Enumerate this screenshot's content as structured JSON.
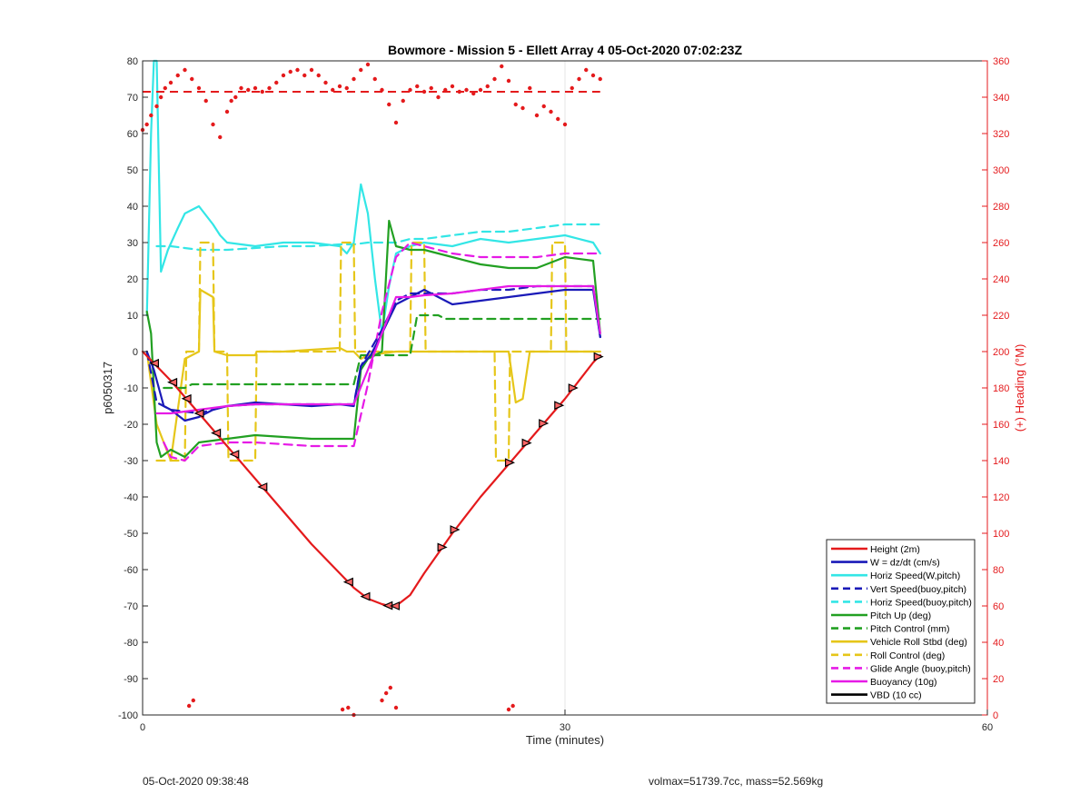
{
  "footer": {
    "timestamp": "05-Oct-2020 09:38:48",
    "info": "volmax=51739.7cc, mass=52.569kg"
  },
  "chart_data": {
    "type": "line",
    "title": "Bowmore - Mission 5 - Ellett Array 4 05-Oct-2020 07:02:23Z",
    "xlabel": "Time (minutes)",
    "ylabel": "p6050317",
    "y2label": "(+) Heading (°M)",
    "xlim": [
      0,
      60
    ],
    "ylim": [
      -100,
      80
    ],
    "y2lim": [
      0,
      360
    ],
    "xticks": [
      0,
      30,
      60
    ],
    "yticks": [
      -100,
      -90,
      -80,
      -70,
      -60,
      -50,
      -40,
      -30,
      -20,
      -10,
      0,
      10,
      20,
      30,
      40,
      50,
      60,
      70,
      80
    ],
    "y2ticks": [
      0,
      20,
      40,
      60,
      80,
      100,
      120,
      140,
      160,
      180,
      200,
      220,
      240,
      260,
      280,
      300,
      320,
      340,
      360
    ],
    "grid": "x-at-30",
    "legend_position": "bottom-right",
    "colors": {
      "red": "#e41a1c",
      "blue": "#1a1ab8",
      "cyan": "#33e6e6",
      "green": "#22a022",
      "yellow": "#e6c619",
      "magenta": "#e61ae6",
      "black": "#000000",
      "axis_left": "#262626",
      "axis_right": "#e41a1c"
    },
    "series": [
      {
        "name": "Height (2m)",
        "color": "red",
        "style": "solid",
        "x": [
          0,
          2,
          4,
          6,
          8,
          10,
          12,
          14,
          15,
          16,
          17,
          17.5,
          18,
          19,
          20,
          22,
          24,
          26,
          28,
          30,
          32,
          32.5
        ],
        "y": [
          0,
          -8,
          -17,
          -26,
          -35,
          -44,
          -53,
          -61,
          -65,
          -68,
          -69.5,
          -70,
          -70,
          -67,
          -61,
          -50,
          -40,
          -31,
          -22,
          -13,
          -3,
          -1
        ]
      },
      {
        "name": "W = dz/dt (cm/s)",
        "color": "blue",
        "style": "solid",
        "x": [
          0.3,
          0.8,
          1.5,
          2,
          3,
          4,
          5,
          6,
          8,
          10,
          12,
          14,
          15,
          15.5,
          16.2,
          17,
          18,
          19,
          20,
          21,
          22,
          24,
          26,
          28,
          30,
          32,
          32.5
        ],
        "y": [
          0,
          -5,
          -15,
          -16,
          -19,
          -18,
          -16,
          -15,
          -14,
          -14.5,
          -15,
          -14.5,
          -15,
          -4,
          -1,
          5,
          13,
          15,
          17,
          15,
          13,
          14,
          15,
          16,
          17,
          17,
          4
        ]
      },
      {
        "name": "Horiz Speed(W,pitch)",
        "color": "cyan",
        "style": "solid",
        "x": [
          0.3,
          0.6,
          0.8,
          1.0,
          1.3,
          1.8,
          2.5,
          3,
          4,
          5,
          5.5,
          6,
          8,
          10,
          12,
          14,
          14.5,
          15,
          15.5,
          16,
          16.5,
          17,
          17.5,
          18,
          19,
          20,
          22,
          24,
          26,
          28,
          30,
          32,
          32.5
        ],
        "y": [
          10,
          60,
          80,
          80,
          22,
          28,
          34,
          38,
          40,
          35,
          32,
          30,
          29,
          30,
          30,
          29,
          27,
          30,
          46,
          38,
          20,
          5,
          18,
          27,
          29,
          30,
          29,
          31,
          30,
          31,
          32,
          30,
          27
        ]
      },
      {
        "name": "Vert Speed(buoy,pitch)",
        "color": "blue",
        "style": "dashed",
        "x": [
          0.3,
          1,
          2,
          4,
          6,
          8,
          10,
          12,
          14,
          15,
          15.5,
          17,
          18,
          19,
          20,
          22,
          24,
          26,
          28,
          30,
          32,
          32.5
        ],
        "y": [
          0,
          -14,
          -16,
          -17,
          -15,
          -14.5,
          -14.5,
          -14.5,
          -14.5,
          -14.5,
          -4,
          6,
          14,
          16,
          16,
          16,
          17,
          17,
          18,
          18,
          18,
          4
        ]
      },
      {
        "name": "Horiz Speed(buoy,pitch)",
        "color": "cyan",
        "style": "dashed",
        "x": [
          1,
          2,
          4,
          6,
          8,
          10,
          12,
          14,
          15,
          16,
          17,
          18,
          19,
          20,
          22,
          24,
          26,
          28,
          30,
          32,
          32.5
        ],
        "y": [
          29,
          29,
          28,
          28,
          28.5,
          29,
          29,
          29.5,
          29.5,
          30,
          30,
          30,
          31,
          31,
          32,
          33,
          33,
          34,
          35,
          35,
          35
        ]
      },
      {
        "name": "Pitch Up (deg)",
        "color": "green",
        "style": "solid",
        "x": [
          0.3,
          0.6,
          1.0,
          1.3,
          2,
          3,
          4,
          6,
          8,
          10,
          12,
          14,
          15,
          15.5,
          16,
          17,
          17.5,
          18,
          19,
          20,
          22,
          24,
          26,
          28,
          30,
          32,
          32.5
        ],
        "y": [
          11,
          5,
          -25,
          -29,
          -27,
          -29,
          -25,
          -24,
          -23,
          -23.5,
          -24,
          -24,
          -24,
          -5,
          -2,
          0,
          36,
          29,
          28,
          28,
          26,
          24,
          23,
          23,
          26,
          25,
          5
        ]
      },
      {
        "name": "Pitch Control (mm)",
        "color": "green",
        "style": "dashed",
        "x": [
          1.5,
          3,
          3.5,
          10,
          15,
          15.5,
          19,
          19.5,
          21,
          21.5,
          30,
          32,
          32.5
        ],
        "y": [
          -10,
          -10,
          -9,
          -9,
          -9,
          -1,
          -1,
          10,
          10,
          9,
          9,
          9,
          9
        ]
      },
      {
        "name": "Vehicle Roll Stbd (deg)",
        "color": "yellow",
        "style": "solid",
        "x": [
          0.3,
          1,
          2,
          3,
          4,
          4.1,
          5,
          5.1,
          6,
          8,
          8.1,
          10,
          14,
          14.5,
          15,
          15.5,
          16,
          18,
          19,
          22,
          25,
          26,
          26.5,
          27,
          27.5,
          30,
          30.5,
          32,
          32.5
        ],
        "y": [
          0,
          -20,
          -30,
          -2,
          0,
          17,
          15,
          0,
          -1,
          -1,
          0,
          0,
          1,
          0,
          0,
          -2,
          -1,
          0,
          0,
          0,
          0,
          0,
          -14,
          -13,
          0,
          0,
          0,
          0,
          0
        ]
      },
      {
        "name": "Roll Control (deg)",
        "color": "yellow",
        "style": "dashed",
        "x": [
          1,
          2,
          3,
          3.1,
          4,
          4.1,
          5,
          5.1,
          6,
          6.1,
          8,
          8.1,
          14,
          14.1,
          15,
          15.1,
          19,
          19.1,
          20,
          20.1,
          25,
          25.1,
          26,
          26.1,
          29,
          29.1,
          30,
          30.1,
          32
        ],
        "y": [
          -30,
          -30,
          -30,
          0,
          0,
          30,
          30,
          0,
          0,
          -30,
          -30,
          0,
          0,
          30,
          30,
          0,
          0,
          30,
          30,
          0,
          0,
          -30,
          -30,
          0,
          0,
          30,
          30,
          0,
          0
        ]
      },
      {
        "name": "Glide Angle (buoy,pitch)",
        "color": "magenta",
        "style": "dashed",
        "x": [
          1.5,
          2,
          3,
          4,
          6,
          8,
          10,
          12,
          14,
          15,
          16,
          17,
          18,
          19,
          20,
          22,
          24,
          26,
          28,
          30,
          32,
          32.5
        ],
        "y": [
          -25,
          -29,
          -30,
          -26,
          -25,
          -25,
          -25.5,
          -26,
          -26,
          -26,
          -9,
          11,
          26,
          30,
          29,
          27,
          26,
          26,
          26,
          27,
          27,
          27
        ]
      },
      {
        "name": "Buoyancy (10g)",
        "color": "magenta",
        "style": "solid",
        "x": [
          1,
          2,
          4,
          6,
          8,
          10,
          12,
          14,
          15,
          16,
          17,
          18,
          19,
          20,
          22,
          24,
          26,
          28,
          30,
          32,
          32.5
        ],
        "y": [
          -17,
          -17,
          -16,
          -15,
          -14.5,
          -14.5,
          -14.5,
          -14.5,
          -14.5,
          -5,
          5,
          15,
          15,
          15.5,
          16,
          17,
          18,
          18,
          18,
          18,
          5
        ]
      },
      {
        "name": "VBD (10 cc)",
        "color": "black",
        "style": "solid",
        "x": [
          0.3,
          0.7,
          1,
          2,
          5,
          10,
          14,
          15.2,
          18,
          19,
          20,
          22,
          24,
          26,
          28,
          30,
          32,
          32.5
        ],
        "y": [
          0,
          -14,
          -14,
          -14,
          -14,
          -14,
          -14.5,
          -14.5,
          15,
          15,
          15,
          17,
          18,
          18.5,
          19,
          19.5,
          20,
          5
        ]
      }
    ],
    "heading_reference": {
      "y2": 343,
      "color": "red",
      "style": "dashed",
      "x": [
        0,
        32.5
      ]
    },
    "heading": {
      "axis": "right",
      "color": "red",
      "style": "dots",
      "x": [
        0,
        0.3,
        0.6,
        1,
        1.3,
        1.6,
        2,
        2.5,
        3,
        3.5,
        4,
        4.5,
        5,
        5.5,
        6,
        6.3,
        6.6,
        7,
        7.5,
        8,
        8.5,
        9,
        9.5,
        10,
        10.5,
        11,
        11.5,
        12,
        12.5,
        13,
        13.5,
        14,
        14.5,
        15,
        15.5,
        16,
        16.5,
        17,
        17.5,
        18,
        18.5,
        19,
        19.5,
        20,
        20.5,
        21,
        21.5,
        22,
        22.5,
        23,
        23.5,
        24,
        24.5,
        25,
        25.5,
        26,
        26.5,
        27,
        27.5,
        28,
        28.5,
        29,
        29.5,
        30,
        30.5,
        31,
        31.5,
        32,
        32.5,
        3.3,
        3.6,
        14.2,
        14.6,
        15.0,
        17.0,
        17.3,
        17.6,
        18.0,
        26.0,
        26.3
      ],
      "y2": [
        322,
        325,
        330,
        335,
        340,
        345,
        348,
        352,
        355,
        350,
        345,
        338,
        325,
        318,
        332,
        338,
        340,
        345,
        344,
        345,
        343,
        345,
        348,
        352,
        354,
        355,
        352,
        355,
        352,
        348,
        344,
        346,
        345,
        350,
        355,
        358,
        350,
        344,
        336,
        326,
        338,
        344,
        346,
        343,
        345,
        340,
        344,
        346,
        343,
        344,
        342,
        344,
        346,
        350,
        357,
        349,
        336,
        334,
        345,
        330,
        335,
        332,
        328,
        325,
        345,
        350,
        355,
        352,
        350,
        5,
        8,
        3,
        4,
        0,
        8,
        12,
        15,
        4,
        3,
        5
      ]
    }
  }
}
